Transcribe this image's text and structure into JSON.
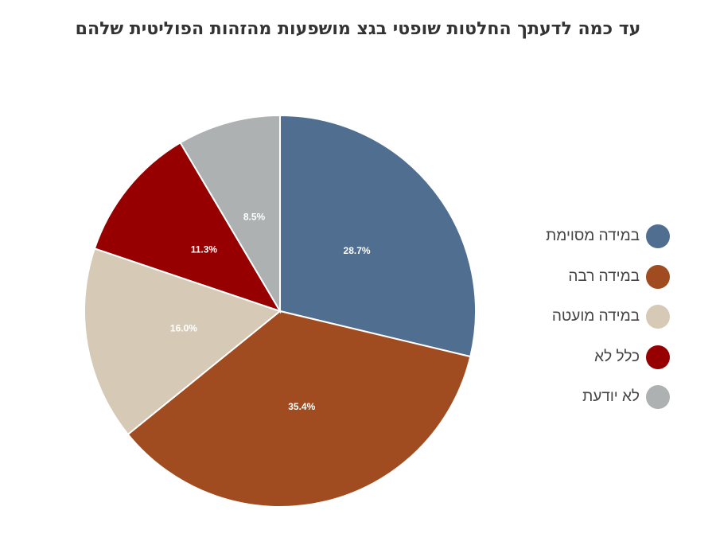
{
  "chart_data": {
    "type": "pie",
    "title": "עד כמה לדעתך החלטות שופטי בגצ מושפעות מהזהות הפוליטית שלהם",
    "categories": [
      "במידה מסוימת",
      "במידה רבה",
      "במידה מועטה",
      "כלל לא",
      "לא יודעת"
    ],
    "values": [
      28.7,
      35.4,
      16.0,
      11.3,
      8.5
    ],
    "labels": [
      "28.7%",
      "35.4%",
      "16.0%",
      "11.3%",
      "8.5%"
    ],
    "colors": [
      "#4f6e90",
      "#a04c20",
      "#d6cab6",
      "#960000",
      "#adb1b2"
    ],
    "legend_position": "right"
  }
}
